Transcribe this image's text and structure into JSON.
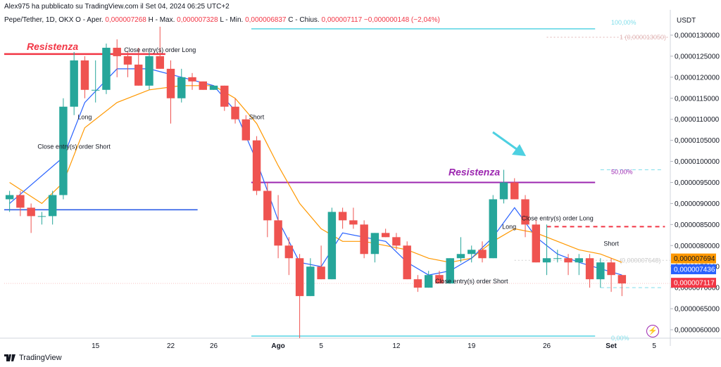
{
  "header": {
    "publisher": "Alex975 ha pubblicato su TradingView.com il Set 04, 2024 06:25 UTC+2",
    "symbol": "Pepe/Tether, 1D, OKX",
    "ohlc": [
      {
        "k": "O - Aper.",
        "v": "0,000007268"
      },
      {
        "k": "H - Max.",
        "v": "0,000007328"
      },
      {
        "k": "L - Min.",
        "v": "0,000006837"
      },
      {
        "k": "C - Chius.",
        "v": "0,000007117"
      },
      {
        "k": "",
        "v": "−0,000000148 (−2,04%)"
      }
    ]
  },
  "footer": {
    "brand": "TradingView"
  },
  "axis_unit": "USDT",
  "colors": {
    "up": "#26a69a",
    "down": "#ef5350",
    "ema_fast": "#2962ff",
    "ema_slow": "#ff9800",
    "resistance1": "#f23645",
    "resistance2": "#9c27b0",
    "support": "#1e53e5",
    "fib": "#80deea"
  },
  "chart_data": {
    "type": "candlestick",
    "ylim": [
      5.8e-06,
      1.32e-05
    ],
    "y_ticks": [
      "0,0000130000",
      "0,0000125000",
      "0,0000120000",
      "0,0000115000",
      "0,0000110000",
      "0,0000105000",
      "0,0000100000",
      "0,0000095000",
      "0,0000090000",
      "0,0000085000",
      "0,0000080000",
      "0,0000075000",
      "0,0000070000",
      "0,0000065000",
      "0,0000060000"
    ],
    "y_tick_values": [
      13.0,
      12.5,
      12.0,
      11.5,
      11.0,
      10.5,
      10.0,
      9.5,
      9.0,
      8.5,
      8.0,
      7.5,
      7.0,
      6.5,
      6.0
    ],
    "x_ticks": [
      {
        "label": "15",
        "day": 15
      },
      {
        "label": "22",
        "day": 22
      },
      {
        "label": "26",
        "day": 26
      },
      {
        "label": "Ago",
        "day": 32
      },
      {
        "label": "5",
        "day": 36
      },
      {
        "label": "12",
        "day": 43
      },
      {
        "label": "19",
        "day": 50
      },
      {
        "label": "26",
        "day": 57
      },
      {
        "label": "Set",
        "day": 63
      },
      {
        "label": "5",
        "day": 67
      }
    ],
    "x_range_days": [
      6.5,
      68.5
    ],
    "ohlc_scaled_e-6": [
      [
        7,
        9.1,
        9.3,
        8.8,
        9.2
      ],
      [
        8,
        9.2,
        9.3,
        8.7,
        8.9
      ],
      [
        9,
        8.9,
        9.0,
        8.3,
        8.7
      ],
      [
        10,
        8.7,
        8.8,
        8.5,
        8.7
      ],
      [
        11,
        8.7,
        9.3,
        8.5,
        9.2
      ],
      [
        12,
        9.2,
        11.5,
        9.1,
        11.3
      ],
      [
        13,
        11.3,
        12.6,
        11.1,
        12.4
      ],
      [
        14,
        12.4,
        12.5,
        11.5,
        11.7
      ],
      [
        15,
        11.7,
        12.4,
        11.4,
        11.7
      ],
      [
        16,
        11.7,
        12.8,
        11.6,
        12.7
      ],
      [
        17,
        12.7,
        12.9,
        12.0,
        12.5
      ],
      [
        18,
        12.5,
        12.6,
        12.0,
        12.3
      ],
      [
        19,
        12.3,
        12.7,
        11.8,
        11.8
      ],
      [
        20,
        11.8,
        12.6,
        11.7,
        12.5
      ],
      [
        21,
        12.5,
        13.2,
        12.2,
        12.2
      ],
      [
        22,
        12.2,
        12.4,
        10.9,
        11.5
      ],
      [
        23,
        11.5,
        12.2,
        11.4,
        12.0
      ],
      [
        24,
        12.0,
        12.1,
        11.7,
        11.9
      ],
      [
        25,
        11.9,
        11.9,
        11.7,
        11.7
      ],
      [
        26,
        11.7,
        11.8,
        11.7,
        11.8
      ],
      [
        27,
        11.8,
        11.8,
        11.2,
        11.3
      ],
      [
        28,
        11.3,
        11.5,
        10.9,
        11.0
      ],
      [
        29,
        11.0,
        11.1,
        10.5,
        10.5
      ],
      [
        30,
        10.5,
        10.6,
        9.2,
        9.3
      ],
      [
        31,
        9.3,
        9.5,
        8.2,
        8.6
      ],
      [
        32,
        8.6,
        9.2,
        7.7,
        8.0
      ],
      [
        33,
        8.0,
        8.2,
        7.3,
        7.7
      ],
      [
        34,
        7.7,
        7.8,
        5.8,
        6.8
      ],
      [
        35,
        6.8,
        7.7,
        6.8,
        7.5
      ],
      [
        36,
        7.5,
        8.0,
        7.2,
        7.2
      ],
      [
        37,
        7.2,
        8.9,
        7.2,
        8.8
      ],
      [
        38,
        8.8,
        8.9,
        8.4,
        8.6
      ],
      [
        39,
        8.6,
        8.9,
        8.4,
        8.5
      ],
      [
        40,
        8.5,
        8.6,
        7.7,
        7.8
      ],
      [
        41,
        7.8,
        8.3,
        7.6,
        8.3
      ],
      [
        42,
        8.3,
        8.4,
        8.2,
        8.2
      ],
      [
        43,
        8.2,
        8.3,
        7.9,
        8.0
      ],
      [
        44,
        8.0,
        8.1,
        7.2,
        7.2
      ],
      [
        45,
        7.2,
        7.3,
        6.9,
        7.0
      ],
      [
        46,
        7.0,
        7.4,
        7.0,
        7.3
      ],
      [
        47,
        7.3,
        7.4,
        7.1,
        7.1
      ],
      [
        48,
        7.1,
        7.7,
        7.1,
        7.7
      ],
      [
        49,
        7.7,
        8.2,
        7.6,
        7.8
      ],
      [
        50,
        7.8,
        8.0,
        7.6,
        7.9
      ],
      [
        51,
        7.9,
        8.1,
        7.6,
        7.7
      ],
      [
        52,
        7.7,
        9.2,
        7.7,
        9.1
      ],
      [
        53,
        9.1,
        9.8,
        9.0,
        9.5
      ],
      [
        54,
        9.5,
        9.6,
        9.1,
        9.1
      ],
      [
        55,
        9.1,
        9.2,
        8.2,
        8.5
      ],
      [
        56,
        8.5,
        8.6,
        7.6,
        7.6
      ],
      [
        57,
        7.6,
        8.5,
        7.3,
        7.7
      ],
      [
        58,
        7.7,
        7.9,
        7.6,
        7.7
      ],
      [
        59,
        7.7,
        7.8,
        7.3,
        7.6
      ],
      [
        60,
        7.6,
        7.8,
        7.3,
        7.7
      ],
      [
        61,
        7.7,
        7.8,
        7.0,
        7.2
      ],
      [
        62,
        7.2,
        7.7,
        7.0,
        7.6
      ],
      [
        63,
        7.6,
        7.7,
        6.9,
        7.3
      ],
      [
        64,
        7.3,
        7.3,
        6.8,
        7.1
      ]
    ],
    "ema_fast": [
      [
        7,
        9.0
      ],
      [
        12,
        10.1
      ],
      [
        14,
        11.4
      ],
      [
        17,
        12.2
      ],
      [
        20,
        12.2
      ],
      [
        23,
        12.0
      ],
      [
        26,
        11.8
      ],
      [
        28,
        11.2
      ],
      [
        30,
        10.0
      ],
      [
        32,
        8.6
      ],
      [
        34,
        7.6
      ],
      [
        36,
        7.5
      ],
      [
        38,
        8.3
      ],
      [
        40,
        8.2
      ],
      [
        42,
        8.1
      ],
      [
        44,
        7.6
      ],
      [
        46,
        7.3
      ],
      [
        48,
        7.4
      ],
      [
        50,
        7.7
      ],
      [
        52,
        8.2
      ],
      [
        54,
        8.9
      ],
      [
        56,
        8.2
      ],
      [
        58,
        7.8
      ],
      [
        60,
        7.6
      ],
      [
        64,
        7.3
      ]
    ],
    "ema_slow": [
      [
        7,
        9.5
      ],
      [
        10,
        9.0
      ],
      [
        12,
        9.5
      ],
      [
        14,
        10.8
      ],
      [
        17,
        11.4
      ],
      [
        20,
        11.7
      ],
      [
        23,
        11.8
      ],
      [
        26,
        11.8
      ],
      [
        28,
        11.5
      ],
      [
        30,
        10.9
      ],
      [
        32,
        9.9
      ],
      [
        34,
        9.0
      ],
      [
        36,
        8.4
      ],
      [
        38,
        8.1
      ],
      [
        40,
        8.1
      ],
      [
        42,
        8.0
      ],
      [
        44,
        7.9
      ],
      [
        46,
        7.7
      ],
      [
        48,
        7.6
      ],
      [
        50,
        7.7
      ],
      [
        52,
        8.1
      ],
      [
        54,
        8.4
      ],
      [
        56,
        8.3
      ],
      [
        58,
        8.1
      ],
      [
        60,
        7.9
      ],
      [
        62,
        7.8
      ],
      [
        64,
        7.6
      ]
    ],
    "annotations": {
      "resistance_1": {
        "label": "Resistenza",
        "y": 12.55,
        "x_from": 6.5,
        "x_to": 21.5
      },
      "resistance_2": {
        "label": "Resistenza",
        "y": 9.5,
        "x_from": 29.5,
        "x_to": 61.5
      },
      "support": {
        "y": 8.85,
        "x_from": 6.5,
        "x_to": 24.5
      },
      "red_dashed": {
        "y": 8.45,
        "x_from": 57,
        "x_to": 68
      },
      "fib_100": {
        "label": "100,00%",
        "y": 13.15,
        "x_from": 29.5,
        "x_to": 61.5
      },
      "fib_1": {
        "label": "1 (0,000013050)",
        "y": 12.95
      },
      "fib_50": {
        "label": "50,00%",
        "y": 9.65
      },
      "fib_0": {
        "label": "0,00%",
        "y": 5.85,
        "x_from": 29.5,
        "x_to": 61.5
      },
      "fib_ref": {
        "label": "(0,000007648)",
        "y": 7.65
      },
      "signals": [
        {
          "text": "Close entry(s) order Long",
          "day": 21,
          "y": 12.6
        },
        {
          "text": "Long",
          "day": 14,
          "y": 11.0
        },
        {
          "text": "Close entry(s) order Short",
          "day": 13,
          "y": 10.3
        },
        {
          "text": "Short",
          "day": 30,
          "y": 11.0
        },
        {
          "text": "Long",
          "day": 53.5,
          "y": 8.4
        },
        {
          "text": "Close entry(s) order Long",
          "day": 58,
          "y": 8.6
        },
        {
          "text": "Close entry(s) order Short",
          "day": 50,
          "y": 7.1
        },
        {
          "text": "Short",
          "day": 63,
          "y": 8.0
        }
      ]
    },
    "price_badges": [
      {
        "value": "0,000007694",
        "y": 7.694,
        "color": "#ff9800"
      },
      {
        "value": "0,000007436",
        "y": 7.436,
        "color": "#2962ff"
      },
      {
        "value": "0,000007117",
        "y": 7.117,
        "color": "#f23645"
      }
    ]
  }
}
